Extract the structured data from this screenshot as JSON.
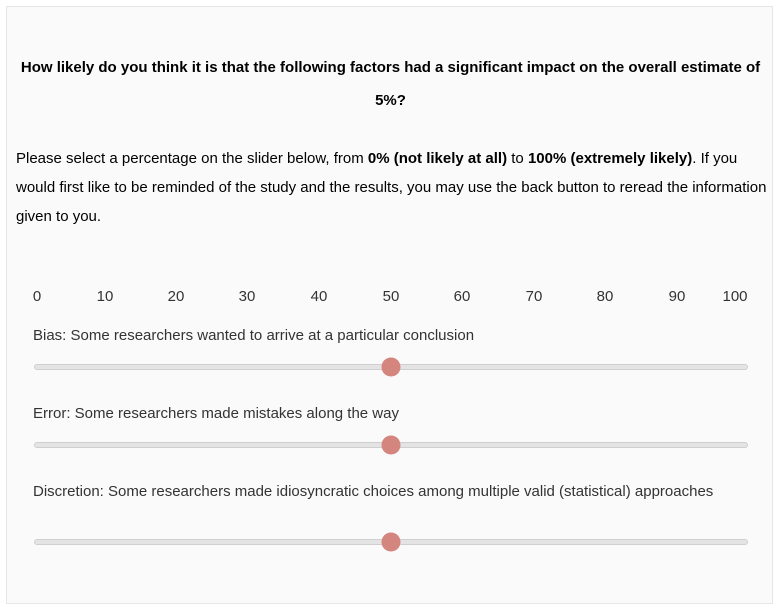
{
  "question": "How likely do you think it is that the following factors had a significant impact on the overall estimate of 5%?",
  "instructions": {
    "part1": "Please select a percentage on the slider below, from ",
    "min_bold": "0% (not likely at all)",
    "part2": " to ",
    "max_bold": "100% (extremely likely)",
    "part3": ". If you would first like to be reminded of the study and the results, you may use the back button to reread the information given to you."
  },
  "scale": {
    "ticks": [
      "0",
      "10",
      "20",
      "30",
      "40",
      "50",
      "60",
      "70",
      "80",
      "90",
      "100"
    ],
    "min": 0,
    "max": 100
  },
  "sliders": [
    {
      "label": "Bias: Some researchers wanted to arrive at a particular conclusion",
      "value": 50
    },
    {
      "label": "Error: Some researchers made mistakes along the way",
      "value": 50
    },
    {
      "label": "Discretion: Some researchers made idiosyncratic choices among multiple valid (statistical) approaches",
      "value": 50
    }
  ],
  "colors": {
    "thumb": "#d4857e",
    "track": "#e4e4e4"
  }
}
